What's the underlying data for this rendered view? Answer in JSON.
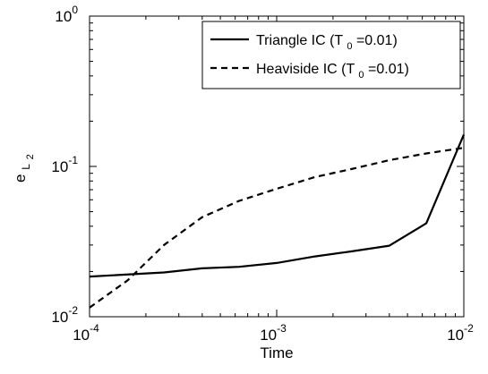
{
  "chart_data": {
    "type": "line",
    "title": "",
    "xlabel": "Time",
    "ylabel": {
      "base": "e",
      "sub": "L",
      "subsub": "2"
    },
    "xscale": "log",
    "yscale": "log",
    "xlim": [
      0.0001,
      0.01
    ],
    "ylim": [
      0.01,
      1
    ],
    "grid": false,
    "legend_position": "top-right",
    "xticks": [
      {
        "value": 0.0001,
        "base": "10",
        "exp": "-4"
      },
      {
        "value": 0.001,
        "base": "10",
        "exp": "-3"
      },
      {
        "value": 0.01,
        "base": "10",
        "exp": "-2"
      }
    ],
    "yticks": [
      {
        "value": 0.01,
        "base": "10",
        "exp": "-2"
      },
      {
        "value": 0.1,
        "base": "10",
        "exp": "-1"
      },
      {
        "value": 1,
        "base": "10",
        "exp": "0"
      }
    ],
    "series": [
      {
        "name": "Triangle IC (T0=0.01)",
        "legend": {
          "before": "Triangle IC (T",
          "sub": "0",
          "after": "=0.01)"
        },
        "style": "solid",
        "color": "#000000",
        "x": [
          0.0001,
          0.00025,
          0.0004,
          0.00063,
          0.001,
          0.0016,
          0.0025,
          0.004,
          0.0063,
          0.01
        ],
        "y": [
          0.0185,
          0.0197,
          0.021,
          0.0215,
          0.0228,
          0.0252,
          0.0272,
          0.0297,
          0.0418,
          0.163
        ]
      },
      {
        "name": "Heaviside IC (T0=0.01)",
        "legend": {
          "before": "Heaviside IC (T",
          "sub": "0",
          "after": "=0.01)"
        },
        "style": "dashed",
        "color": "#000000",
        "x": [
          0.0001,
          0.00016,
          0.00025,
          0.0004,
          0.00063,
          0.001,
          0.0016,
          0.0025,
          0.004,
          0.0063,
          0.01
        ],
        "y": [
          0.0115,
          0.0175,
          0.03,
          0.046,
          0.059,
          0.071,
          0.085,
          0.096,
          0.11,
          0.122,
          0.133
        ]
      }
    ]
  }
}
